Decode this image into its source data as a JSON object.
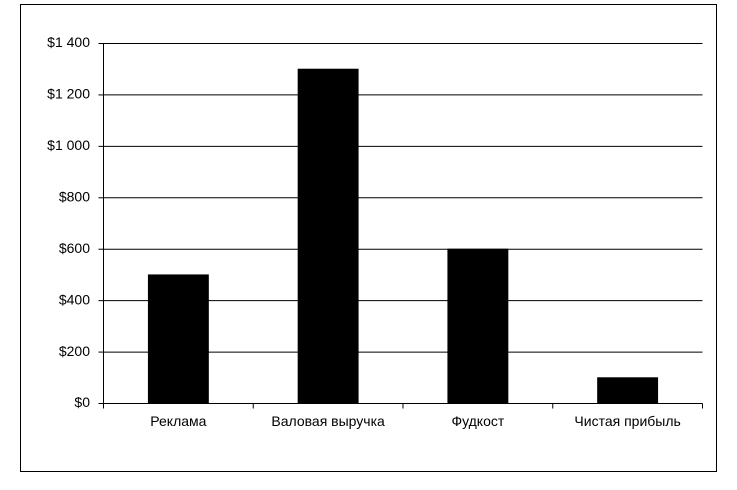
{
  "chart_data": {
    "type": "bar",
    "categories": [
      "Реклама",
      "Валовая выручка",
      "Фудкост",
      "Чистая прибыль"
    ],
    "values": [
      500,
      1300,
      600,
      100
    ],
    "color": "#000000",
    "ylim": [
      0,
      1400
    ],
    "yticks": [
      {
        "value": 0,
        "label": "$0"
      },
      {
        "value": 200,
        "label": "$200"
      },
      {
        "value": 400,
        "label": "$400"
      },
      {
        "value": 600,
        "label": "$600"
      },
      {
        "value": 800,
        "label": "$800"
      },
      {
        "value": 1000,
        "label": "$1 000"
      },
      {
        "value": 1200,
        "label": "$1 200"
      },
      {
        "value": 1400,
        "label": "$1 400"
      }
    ],
    "grid": true
  }
}
